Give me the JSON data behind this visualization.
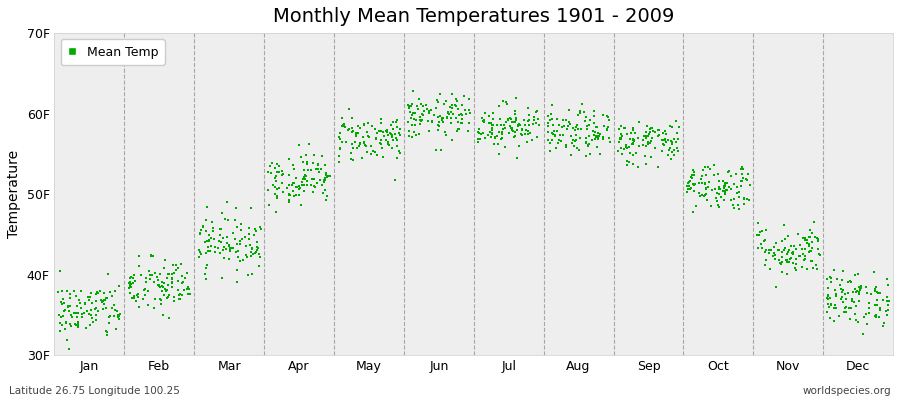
{
  "title": "Monthly Mean Temperatures 1901 - 2009",
  "ylabel": "Temperature",
  "ylim": [
    30,
    70
  ],
  "yticks": [
    30,
    40,
    50,
    60,
    70
  ],
  "ytick_labels": [
    "30F",
    "40F",
    "50F",
    "60F",
    "70F"
  ],
  "months": [
    "Jan",
    "Feb",
    "Mar",
    "Apr",
    "May",
    "Jun",
    "Jul",
    "Aug",
    "Sep",
    "Oct",
    "Nov",
    "Dec"
  ],
  "mean_temps_f": [
    35.5,
    38.5,
    44.0,
    52.0,
    57.0,
    59.5,
    58.5,
    57.5,
    56.5,
    51.0,
    43.0,
    37.0
  ],
  "temp_std": [
    1.8,
    1.8,
    1.8,
    1.6,
    1.5,
    1.4,
    1.4,
    1.4,
    1.4,
    1.5,
    1.6,
    1.7
  ],
  "n_years": 109,
  "dot_color": "#00AA00",
  "dot_size": 3,
  "background_color": "#ffffff",
  "plot_bg_color": "#eeeeee",
  "grid_color": "#888888",
  "title_fontsize": 14,
  "axis_fontsize": 10,
  "tick_fontsize": 9,
  "footnote_left": "Latitude 26.75 Longitude 100.25",
  "footnote_right": "worldspecies.org",
  "legend_label": "Mean Temp",
  "xlim_left": 0,
  "xlim_right": 12
}
